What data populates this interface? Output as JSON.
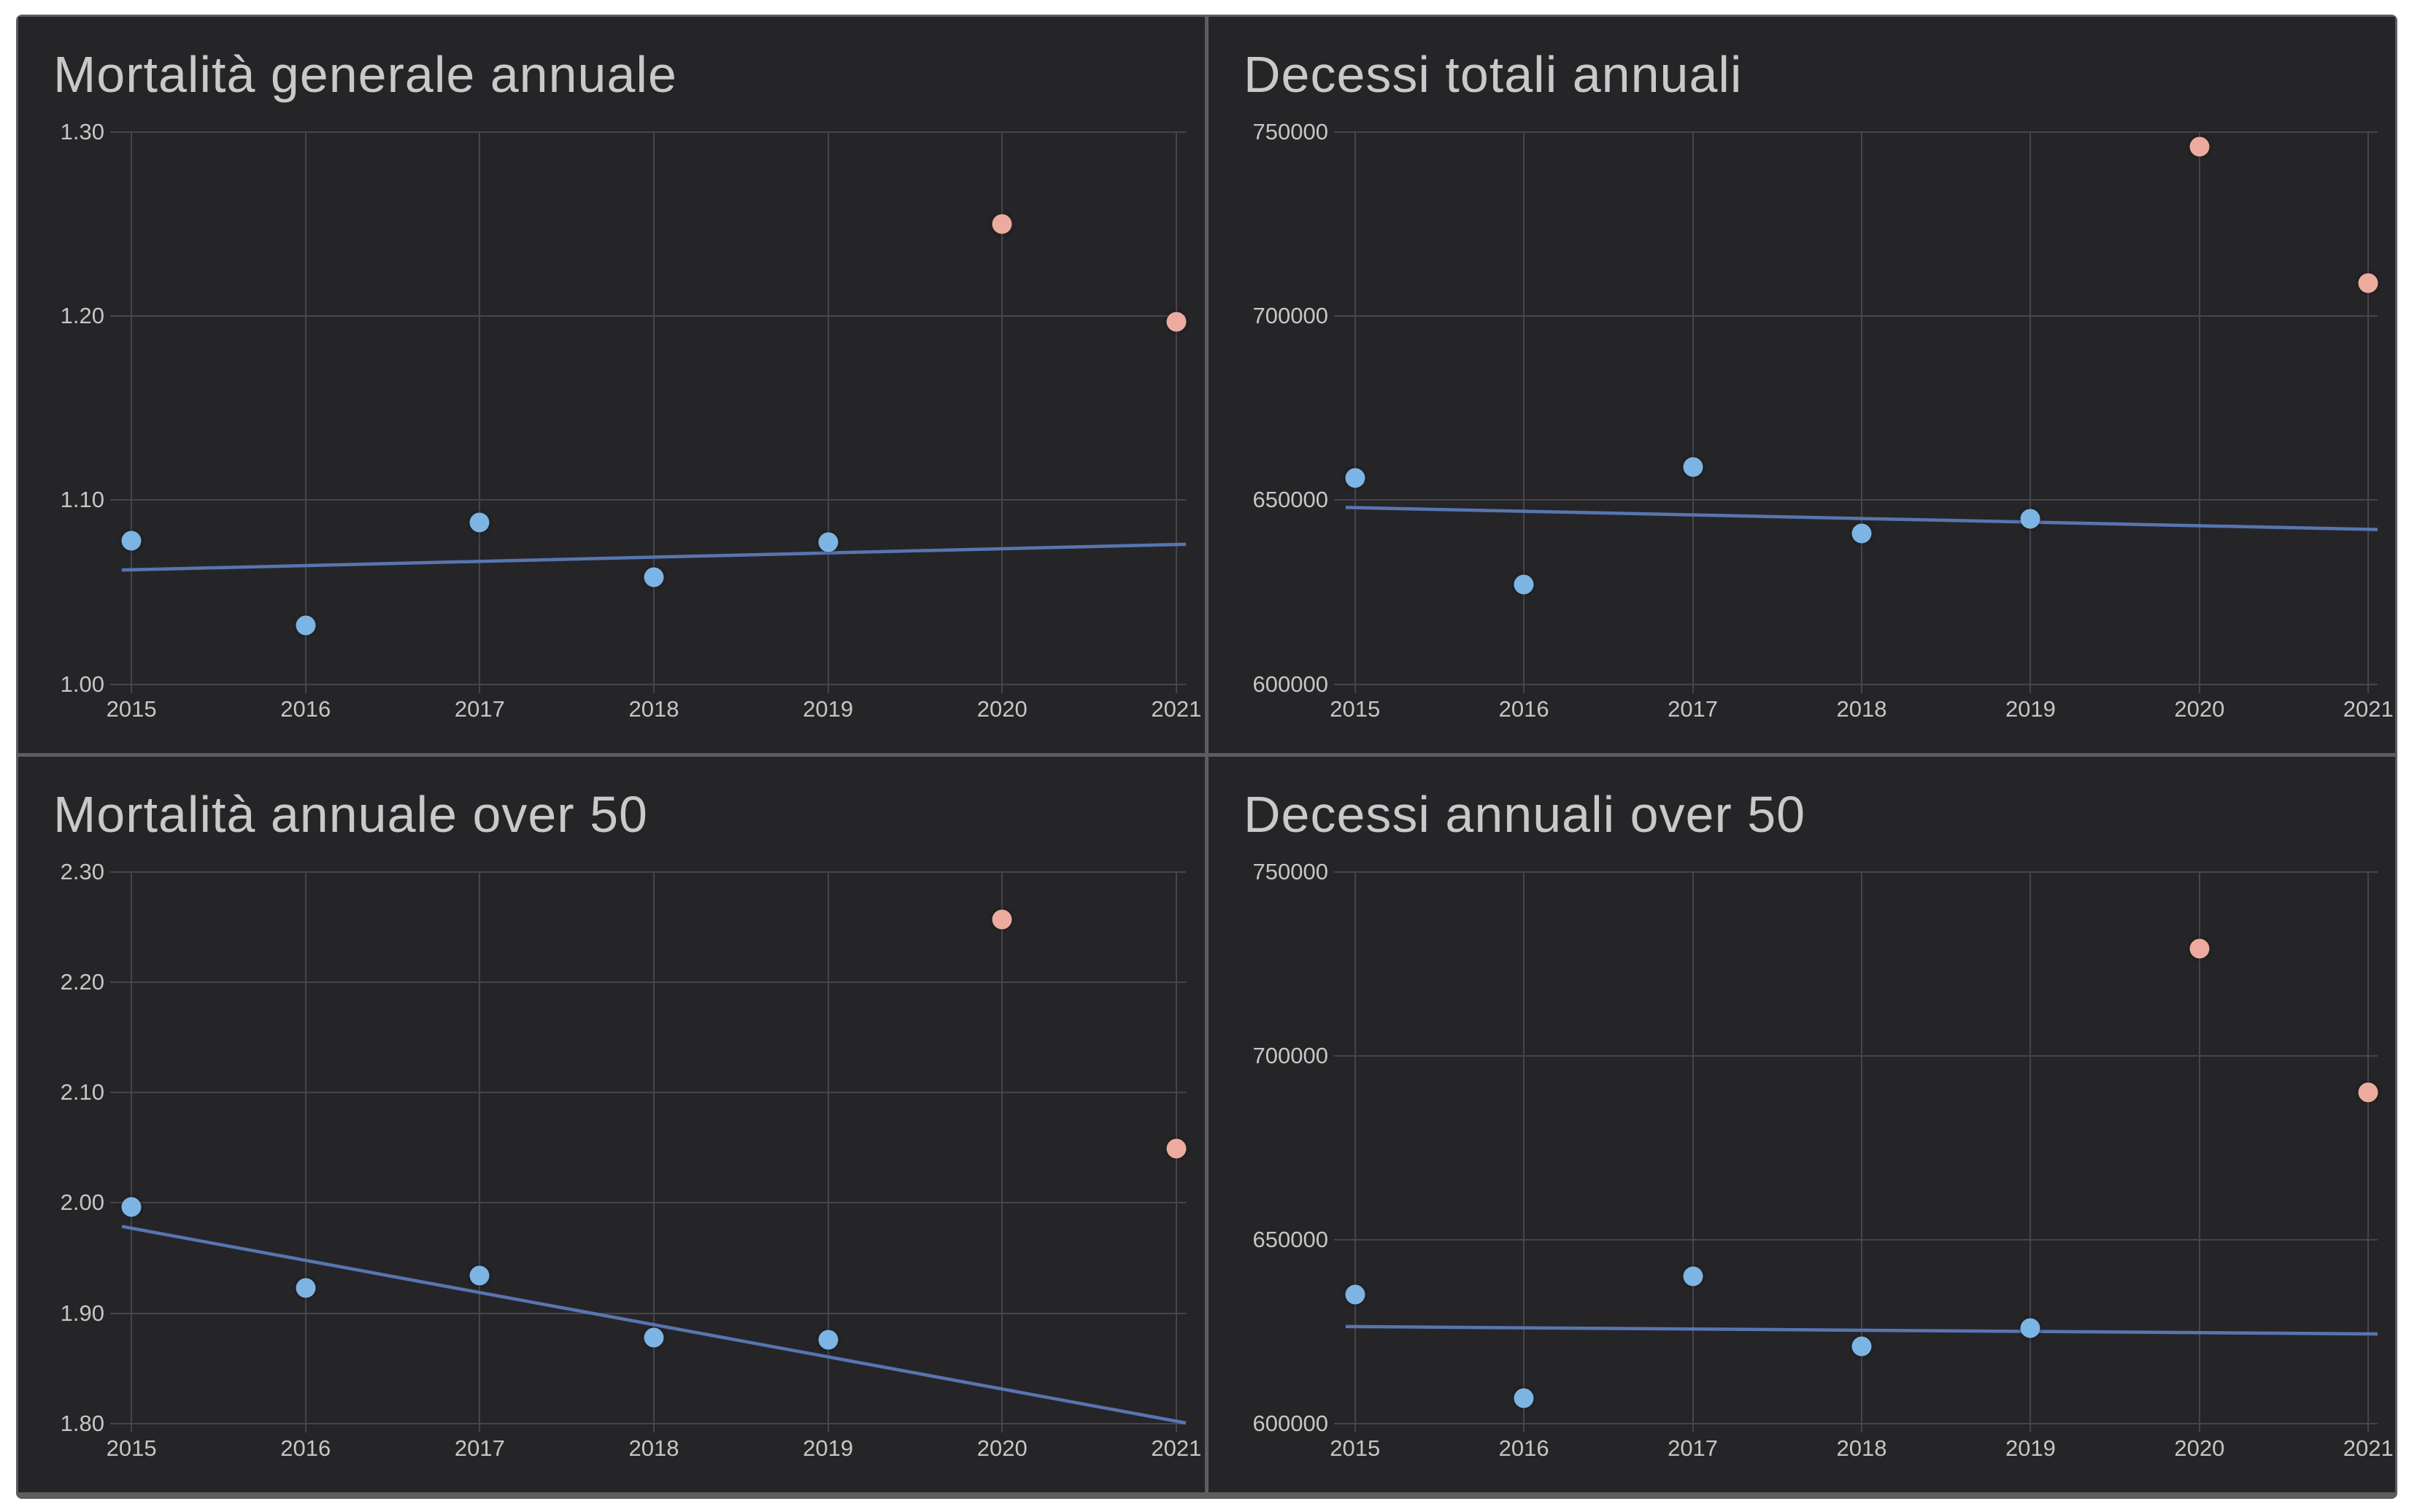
{
  "page": {
    "background_color": "#ffffff",
    "canvas_color": "#252528",
    "divider_color": "#5d5d60"
  },
  "colors": {
    "point_normal": "#7cb4e4",
    "point_highlight": "#ecab9e",
    "trend": "#5b79b7",
    "grid": "#46464a",
    "title_text": "#c9c9c9",
    "tick_text": "#c6c6c6"
  },
  "chart_data": [
    {
      "type": "scatter",
      "title": "Mortalità generale annuale",
      "x": [
        2015,
        2016,
        2017,
        2018,
        2019,
        2020,
        2021
      ],
      "values": [
        1.078,
        1.032,
        1.088,
        1.058,
        1.077,
        1.25,
        1.197
      ],
      "highlight_years": [
        2020,
        2021
      ],
      "trendline": {
        "y_start": 1.062,
        "y_end": 1.076
      },
      "ylim": [
        1.0,
        1.3
      ],
      "yticks": [
        {
          "v": 1.0,
          "label": "1.00"
        },
        {
          "v": 1.1,
          "label": "1.10"
        },
        {
          "v": 1.2,
          "label": "1.20"
        },
        {
          "v": 1.3,
          "label": "1.30"
        }
      ],
      "xlabel": "",
      "ylabel": "",
      "grid": true,
      "legend": "none"
    },
    {
      "type": "scatter",
      "title": "Decessi totali annuali",
      "x": [
        2015,
        2016,
        2017,
        2018,
        2019,
        2020,
        2021
      ],
      "values": [
        656000,
        627000,
        659000,
        641000,
        645000,
        746000,
        709000
      ],
      "highlight_years": [
        2020,
        2021
      ],
      "trendline": {
        "y_start": 648000,
        "y_end": 642000
      },
      "ylim": [
        600000,
        750000
      ],
      "yticks": [
        {
          "v": 600000,
          "label": "600000"
        },
        {
          "v": 650000,
          "label": "650000"
        },
        {
          "v": 700000,
          "label": "700000"
        },
        {
          "v": 750000,
          "label": "750000"
        }
      ],
      "xlabel": "",
      "ylabel": "",
      "grid": true,
      "legend": "none"
    },
    {
      "type": "scatter",
      "title": "Mortalità annuale over 50",
      "x": [
        2015,
        2016,
        2017,
        2018,
        2019,
        2020,
        2021
      ],
      "values": [
        1.996,
        1.923,
        1.934,
        1.878,
        1.876,
        2.257,
        2.049
      ],
      "highlight_years": [
        2020,
        2021
      ],
      "trendline": {
        "y_start": 1.979,
        "y_end": 1.801
      },
      "ylim": [
        1.8,
        2.3
      ],
      "yticks": [
        {
          "v": 1.8,
          "label": "1.80"
        },
        {
          "v": 1.9,
          "label": "1.90"
        },
        {
          "v": 2.0,
          "label": "2.00"
        },
        {
          "v": 2.1,
          "label": "2.10"
        },
        {
          "v": 2.2,
          "label": "2.20"
        },
        {
          "v": 2.3,
          "label": "2.30"
        }
      ],
      "xlabel": "",
      "ylabel": "",
      "grid": true,
      "legend": "none"
    },
    {
      "type": "scatter",
      "title": "Decessi annuali over 50",
      "x": [
        2015,
        2016,
        2017,
        2018,
        2019,
        2020,
        2021
      ],
      "values": [
        635000,
        607000,
        640000,
        621000,
        626000,
        729000,
        690000
      ],
      "highlight_years": [
        2020,
        2021
      ],
      "trendline": {
        "y_start": 626500,
        "y_end": 624500
      },
      "ylim": [
        600000,
        750000
      ],
      "yticks": [
        {
          "v": 600000,
          "label": "600000"
        },
        {
          "v": 650000,
          "label": "650000"
        },
        {
          "v": 700000,
          "label": "700000"
        },
        {
          "v": 750000,
          "label": "750000"
        }
      ],
      "xlabel": "",
      "ylabel": "",
      "grid": true,
      "legend": "none"
    }
  ]
}
